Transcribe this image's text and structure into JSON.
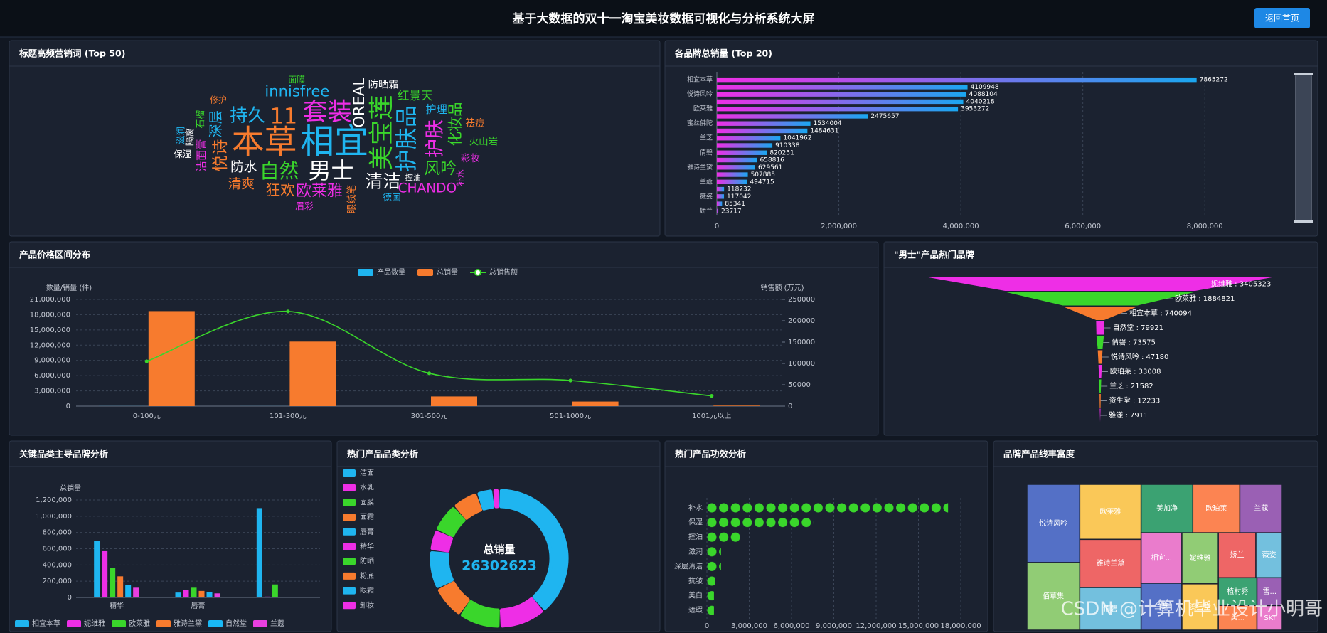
{
  "header": {
    "title": "基于大数据的双十一淘宝美妆数据可视化与分析系统大屏",
    "button": "返回首页"
  },
  "watermark": "CSDN @计算机毕业设计小明哥",
  "chart_data": [
    {
      "type": "wordcloud",
      "title": "标题高频营销词 (Top 50)",
      "categories": [
        "相宜",
        "本草",
        "美宝莲",
        "套装",
        "男士",
        "护肤品",
        "11",
        "自然",
        "护肤",
        "清洁",
        "持久",
        "悦诗",
        "风吟",
        "欧莱雅",
        "OREAL",
        "innisfree",
        "狂欢",
        "化妆品",
        "CHANDO",
        "防水",
        "深层",
        "清爽",
        "红景天",
        "洁面膏",
        "防晒霜",
        "护理",
        "眼线笔",
        "火山岩",
        "彩妆",
        "隔离",
        "德国",
        "祛痘",
        "石榴",
        "眉彩",
        "保湿",
        "滋润",
        "修护",
        "面膜",
        "补水",
        "控油"
      ],
      "values": [
        100,
        95,
        70,
        68,
        62,
        60,
        58,
        52,
        50,
        45,
        45,
        40,
        40,
        38,
        36,
        36,
        35,
        35,
        30,
        30,
        32,
        30,
        25,
        22,
        20,
        22,
        18,
        18,
        18,
        16,
        16,
        18,
        16,
        16,
        15,
        15,
        14,
        14,
        14,
        12
      ],
      "colors": [
        "#1fb5f0",
        "#f77b2e",
        "#3ad62b",
        "#ee2ee6",
        "#ffffff"
      ]
    },
    {
      "type": "bar",
      "horizontal": true,
      "title": "各品牌总销量 (Top 20)",
      "categories": [
        "相宜本草",
        null,
        "悦诗风吟",
        null,
        "欧莱雅",
        null,
        "蜜丝佛陀",
        null,
        "兰芝",
        null,
        "倩碧",
        null,
        "雅诗兰黛",
        null,
        "兰蔻",
        null,
        "薇姿",
        null,
        "娇兰"
      ],
      "values": [
        7865272,
        4109948,
        4088104,
        4040218,
        3953272,
        2475657,
        1534004,
        1484631,
        1041962,
        910338,
        820251,
        658816,
        629561,
        507885,
        494715,
        118232,
        117042,
        85341,
        23717
      ],
      "gradient": [
        "#ee2ee6",
        "#1aa7f0"
      ],
      "xlim": [
        0,
        9000000
      ],
      "xticks": [
        0,
        {
          "value": 2000000,
          "label": "2,000,000"
        },
        {
          "value": 4000000,
          "label": "4,000,000"
        },
        {
          "value": 6000000,
          "label": "6,000,000"
        },
        {
          "value": 8000000,
          "label": "8,000,000"
        }
      ],
      "grid": true
    },
    {
      "type": "combo",
      "title": "产品价格区间分布",
      "categories": [
        "0-100元",
        "101-300元",
        "301-500元",
        "501-1000元",
        "1001元以上"
      ],
      "series": [
        {
          "name": "产品数量",
          "type": "bar",
          "color": "#1fb5f0",
          "values": [
            12000,
            9000,
            2000,
            1000,
            300
          ]
        },
        {
          "name": "总销量",
          "type": "bar",
          "color": "#f77b2e",
          "values": [
            18700000,
            12700000,
            1900000,
            900000,
            100000
          ]
        },
        {
          "name": "总销售额",
          "type": "line",
          "color": "#3ad62b",
          "axis": "y2",
          "values": [
            105000,
            222000,
            77000,
            60000,
            24000
          ]
        }
      ],
      "ylabel": "数量/销量 (件)",
      "y2label": "销售额 (万元)",
      "ylim": [
        0,
        21000000
      ],
      "yticks": [
        0,
        {
          "value": 3000000,
          "label": "3,000,000"
        },
        {
          "value": 6000000,
          "label": "6,000,000"
        },
        {
          "value": 9000000,
          "label": "9,000,000"
        },
        {
          "value": 12000000,
          "label": "12,000,000"
        },
        {
          "value": 15000000,
          "label": "15,000,000"
        },
        {
          "value": 18000000,
          "label": "18,000,000"
        },
        {
          "value": 21000000,
          "label": "21,000,000"
        }
      ],
      "y2lim": [
        0,
        250000
      ],
      "y2ticks": [
        0,
        50000,
        100000,
        150000,
        200000,
        250000
      ],
      "grid": true,
      "legend": "top"
    },
    {
      "type": "funnel",
      "title": "\"男士\"产品热门品牌",
      "values": [
        3405323,
        1884821,
        740094,
        79921,
        73575,
        47180,
        33008,
        21582,
        12233,
        7911
      ],
      "value_labels": [
        "妮维雅 : 3405323",
        "欧莱雅 : 1884821",
        "相宜本草 : 740094",
        "自然堂 : 79921",
        "倩碧 : 73575",
        "悦诗风吟 : 47180",
        "欧珀莱 : 33008",
        "兰芝 : 21582",
        "资生堂 : 12233",
        "雅漾 : 7911"
      ],
      "colors": [
        "#ee2ee6",
        "#3ad62b",
        "#f77b2e"
      ]
    },
    {
      "type": "bar",
      "title": "关键品类主导品牌分析",
      "categories": [
        "精华",
        "唇膏",
        null
      ],
      "series": [
        {
          "name": "相宜本草",
          "color": "#1fb5f0",
          "values": [
            700000,
            60000,
            1100000
          ]
        },
        {
          "name": "妮维雅",
          "color": "#ee2ee6",
          "values": [
            570000,
            90000,
            10000
          ]
        },
        {
          "name": "欧莱雅",
          "color": "#3ad62b",
          "values": [
            360000,
            120000,
            160000
          ]
        },
        {
          "name": "雅诗兰黛",
          "color": "#f77b2e",
          "values": [
            260000,
            80000,
            0
          ]
        },
        {
          "name": "自然堂",
          "color": "#19b8f5",
          "values": [
            150000,
            70000,
            0
          ]
        },
        {
          "name": "兰蔻",
          "color": "#e93fe0",
          "values": [
            120000,
            50000,
            0
          ]
        }
      ],
      "ylabel": "总销量",
      "ylim": [
        0,
        1200000
      ],
      "yticks": [
        0,
        {
          "value": 200000,
          "label": "200,000"
        },
        {
          "value": 400000,
          "label": "400,000"
        },
        {
          "value": 600000,
          "label": "600,000"
        },
        {
          "value": 800000,
          "label": "800,000"
        },
        {
          "value": 1000000,
          "label": "1,000,000"
        },
        {
          "value": 1200000,
          "label": "1,200,000"
        }
      ],
      "grid": true,
      "legend": "bottom"
    },
    {
      "type": "donut",
      "title": "热门产品品类分析",
      "categories": [
        "洁面",
        "水乳",
        "面膜",
        "面霜",
        "唇膏",
        "精华",
        "防晒",
        "粉底",
        "眼霜",
        "卸妆"
      ],
      "values": [
        10200000,
        2900000,
        2600000,
        2100000,
        2400000,
        1300000,
        1800000,
        1600000,
        1000000,
        400000
      ],
      "colors": [
        "#1fb5f0",
        "#ee2ee6",
        "#3ad62b",
        "#f77b2e"
      ],
      "center_label": "总销量",
      "total": 26302623,
      "legend": "left"
    },
    {
      "type": "pictorial",
      "title": "热门产品功效分析",
      "categories": [
        "补水",
        "保湿",
        "控油",
        "滋润",
        "深层清洁",
        "抗皱",
        "美白",
        "遮瑕"
      ],
      "values": [
        17100000,
        7600000,
        2500000,
        1000000,
        1000000,
        600000,
        500000,
        500000
      ],
      "color": "#3ad62b",
      "xlim": [
        0,
        18000000
      ],
      "xticks": [
        0,
        {
          "value": 3000000,
          "label": "3,000,000"
        },
        {
          "value": 6000000,
          "label": "6,000,000"
        },
        {
          "value": 9000000,
          "label": "9,000,000"
        },
        {
          "value": 12000000,
          "label": "12,000,000"
        },
        {
          "value": 15000000,
          "label": "15,000,000"
        },
        {
          "value": 18000000,
          "label": "18,000,000"
        }
      ],
      "grid": true
    },
    {
      "type": "treemap",
      "title": "品牌产品线丰富度",
      "categories": [
        "悦诗风吟",
        "佰草集",
        "欧莱雅",
        "雅诗兰黛",
        "倩碧",
        "美加净",
        "欧珀莱",
        "兰蔻",
        "相宜...",
        "兰芝",
        "妮维雅",
        "资生堂",
        "娇兰",
        "薇姿",
        "植村秀",
        "美...",
        "雪...",
        "SKI"
      ],
      "values": [
        147,
        127,
        120,
        105,
        93,
        89,
        81,
        73,
        73,
        68,
        66,
        60,
        60,
        42,
        38,
        34,
        25,
        22
      ],
      "colors": [
        "#5470c6",
        "#91cc75",
        "#fac858",
        "#ee6666",
        "#73c0de",
        "#3ba272",
        "#fc8452",
        "#9a60b4",
        "#ea7ccc"
      ]
    }
  ]
}
